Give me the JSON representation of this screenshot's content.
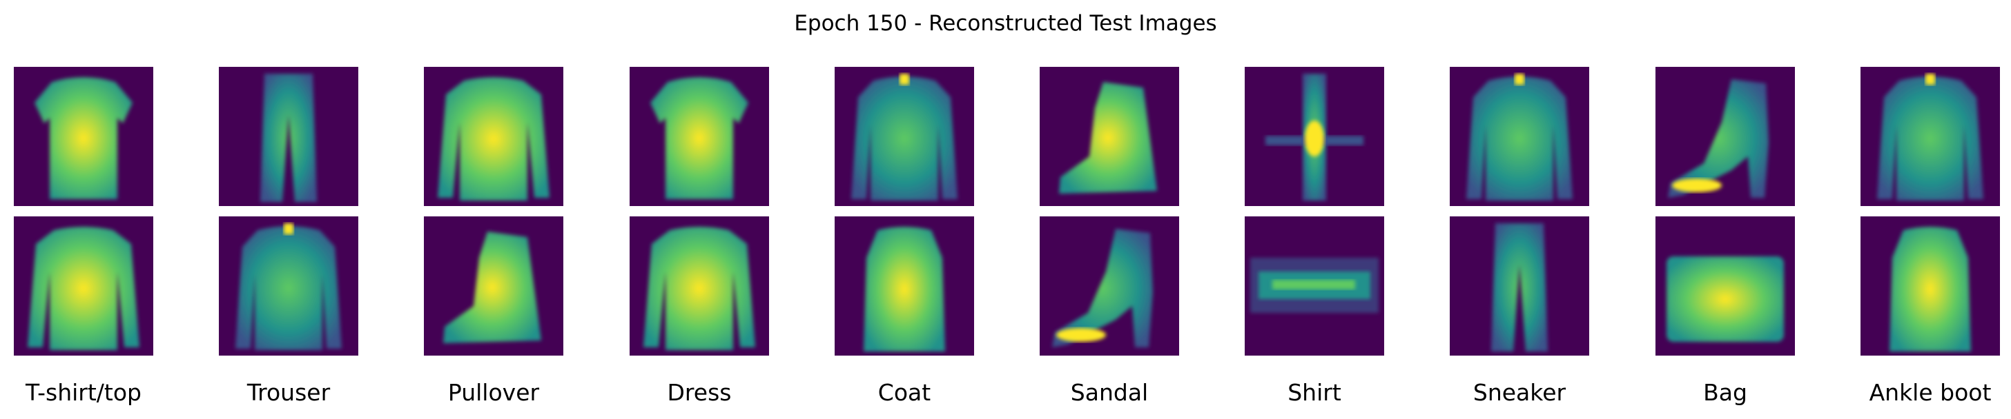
{
  "title": "Epoch 150 - Reconstructed Test Images",
  "colormap": {
    "name": "viridis",
    "background": "#440154",
    "low": "#3b528b",
    "mid": "#21918c",
    "high": "#5ec962",
    "peak": "#fde725"
  },
  "class_labels": [
    "T-shirt/top",
    "Trouser",
    "Pullover",
    "Dress",
    "Coat",
    "Sandal",
    "Shirt",
    "Sneaker",
    "Bag",
    "Ankle boot"
  ],
  "rows": [
    {
      "row": "top",
      "items": [
        "tshirt",
        "trouser",
        "pullover",
        "tshirt",
        "coat",
        "boot",
        "thin",
        "coat",
        "heel",
        "coat"
      ]
    },
    {
      "row": "bottom",
      "items": [
        "pullover",
        "coat",
        "boot",
        "pullover",
        "dress",
        "heel",
        "sneaker",
        "trouser",
        "bag",
        "dress"
      ]
    }
  ]
}
